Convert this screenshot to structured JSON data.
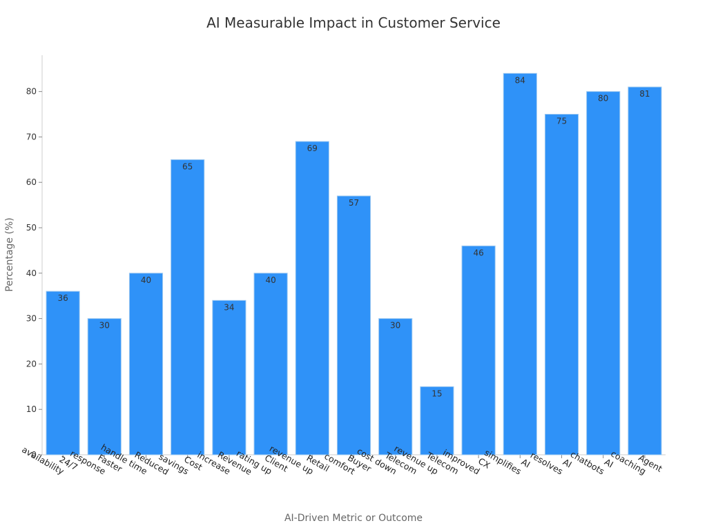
{
  "chart_data": {
    "type": "bar",
    "title": "AI Measurable Impact in Customer Service",
    "xlabel": "AI-Driven Metric or Outcome",
    "ylabel": "Percentage (%)",
    "ylim": [
      0,
      88
    ],
    "yticks": [
      0,
      10,
      20,
      30,
      40,
      50,
      60,
      70,
      80
    ],
    "grid": false,
    "bar_color": "#2f92f8",
    "bar_edge_color": "#9ec9f0",
    "categories": [
      [
        "24/7",
        "availability"
      ],
      [
        "Faster",
        "response"
      ],
      [
        "Reduced",
        "handle time"
      ],
      [
        "Cost",
        "savings"
      ],
      [
        "Revenue",
        "increase"
      ],
      [
        "Client",
        "rating up"
      ],
      [
        "Retail",
        "revenue up"
      ],
      [
        "Buyer",
        "comfort"
      ],
      [
        "Telecom",
        "cost down"
      ],
      [
        "Telecom",
        "revenue up"
      ],
      [
        "CX",
        "improved"
      ],
      [
        "AI",
        "simplifies"
      ],
      [
        "AI",
        "resolves"
      ],
      [
        "AI",
        "chatbots"
      ],
      [
        "Agent",
        "coaching"
      ]
    ],
    "values": [
      36,
      30,
      40,
      65,
      34,
      40,
      69,
      57,
      30,
      15,
      46,
      84,
      75,
      80,
      81
    ]
  }
}
